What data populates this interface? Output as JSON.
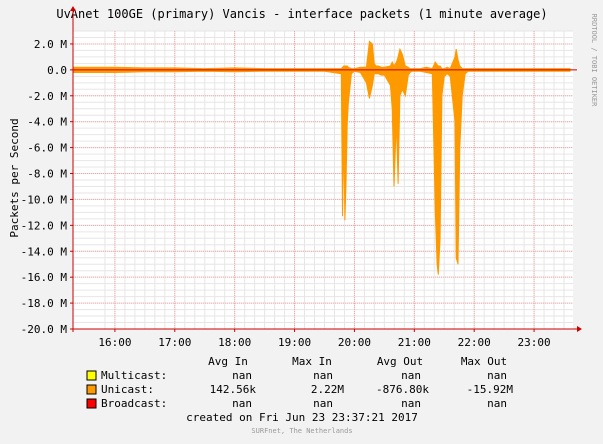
{
  "chart_data": {
    "type": "area",
    "title": "UvAnet 100GE (primary) Vancis - interface packets (1 minute average)",
    "ylabel": "Packets per Second",
    "side_label": "RRDTOOL / TOBI OETIKER",
    "ylim": [
      -20,
      3
    ],
    "yticks": [
      {
        "v": 2,
        "label": "2.0 M"
      },
      {
        "v": 0,
        "label": "0.0"
      },
      {
        "v": -2,
        "label": "-2.0 M"
      },
      {
        "v": -4,
        "label": "-4.0 M"
      },
      {
        "v": -6,
        "label": "-6.0 M"
      },
      {
        "v": -8,
        "label": "-8.0 M"
      },
      {
        "v": -10,
        "label": "-10.0 M"
      },
      {
        "v": -12,
        "label": "-12.0 M"
      },
      {
        "v": -14,
        "label": "-14.0 M"
      },
      {
        "v": -16,
        "label": "-16.0 M"
      },
      {
        "v": -18,
        "label": "-18.0 M"
      },
      {
        "v": -20,
        "label": "-20.0 M"
      }
    ],
    "xlim": [
      15.3,
      23.65
    ],
    "xticks": [
      {
        "v": 16,
        "label": "16:00"
      },
      {
        "v": 17,
        "label": "17:00"
      },
      {
        "v": 18,
        "label": "18:00"
      },
      {
        "v": 19,
        "label": "19:00"
      },
      {
        "v": 20,
        "label": "20:00"
      },
      {
        "v": 21,
        "label": "21:00"
      },
      {
        "v": 22,
        "label": "22:00"
      },
      {
        "v": 23,
        "label": "23:00"
      }
    ],
    "series": [
      {
        "name": "Unicast",
        "color": "#ff9900",
        "x": [
          15.3,
          15.6,
          16.0,
          16.5,
          17.0,
          17.5,
          18.0,
          18.5,
          19.0,
          19.5,
          19.78,
          19.8,
          19.82,
          19.84,
          19.86,
          19.88,
          19.9,
          19.95,
          20.0,
          20.1,
          20.2,
          20.25,
          20.3,
          20.33,
          20.36,
          20.4,
          20.45,
          20.5,
          20.6,
          20.63,
          20.66,
          20.7,
          20.73,
          20.76,
          20.8,
          20.85,
          20.9,
          20.93,
          20.96,
          21.0,
          21.1,
          21.2,
          21.3,
          21.35,
          21.38,
          21.4,
          21.43,
          21.46,
          21.5,
          21.55,
          21.6,
          21.68,
          21.7,
          21.73,
          21.76,
          21.8,
          21.85,
          21.9,
          22.0,
          22.5,
          23.0,
          23.5,
          23.6
        ],
        "high": [
          0.2,
          0.2,
          0.2,
          0.15,
          0.15,
          0.1,
          0.15,
          0.1,
          0.1,
          0.1,
          0.1,
          0.2,
          0.3,
          0.3,
          0.3,
          0.3,
          0.2,
          0.1,
          0.1,
          0.2,
          0.2,
          2.2,
          2.0,
          0.5,
          0.3,
          0.3,
          0.2,
          0.2,
          0.3,
          0.6,
          0.3,
          0.6,
          1.0,
          1.6,
          1.2,
          0.3,
          0.2,
          0.1,
          0.1,
          0.1,
          0.1,
          0.2,
          0.1,
          0.6,
          0.4,
          0.3,
          0.3,
          0.1,
          0.1,
          0.2,
          0.1,
          1.0,
          1.6,
          0.8,
          0.3,
          0.1,
          0.1,
          0.1,
          0.1,
          0.1,
          0.1,
          0.1,
          0.1
        ],
        "low": [
          -0.2,
          -0.2,
          -0.2,
          -0.15,
          -0.15,
          -0.1,
          -0.15,
          -0.1,
          -0.1,
          -0.1,
          -0.3,
          -11.3,
          -5.0,
          -11.6,
          -8.5,
          -4.0,
          -2.5,
          -0.3,
          -0.1,
          -0.2,
          -1.0,
          -2.2,
          -1.2,
          -0.3,
          -0.3,
          -0.3,
          -0.4,
          -0.4,
          -1.2,
          -3.0,
          -9.0,
          -4.0,
          -8.8,
          -2.0,
          -1.5,
          -2.0,
          -0.4,
          -0.2,
          -0.1,
          -0.1,
          -0.1,
          -0.2,
          -0.3,
          -11.0,
          -15.0,
          -15.8,
          -13.0,
          -2.0,
          -0.5,
          -0.3,
          -0.5,
          -4.0,
          -14.5,
          -15.0,
          -6.0,
          -2.0,
          -0.3,
          -0.1,
          -0.1,
          -0.1,
          -0.1,
          -0.1,
          -0.1
        ]
      }
    ],
    "grid": true,
    "legend_placement": "bottom",
    "legend": {
      "headers": [
        "Avg In",
        "Max In",
        "Avg Out",
        "Max Out"
      ],
      "rows": [
        {
          "name": "Multicast:",
          "color": "#ffff00",
          "values": [
            "nan",
            "nan",
            "nan",
            "nan"
          ]
        },
        {
          "name": "Unicast:",
          "color": "#ff9900",
          "values": [
            "142.56k",
            "2.22M",
            "-876.80k",
            "-15.92M"
          ]
        },
        {
          "name": "Broadcast:",
          "color": "#ff0000",
          "values": [
            "nan",
            "nan",
            "nan",
            "nan"
          ]
        }
      ]
    },
    "created": "created on Fri Jun 23 23:37:21 2017",
    "footer": "SURFnet, The Netherlands"
  }
}
